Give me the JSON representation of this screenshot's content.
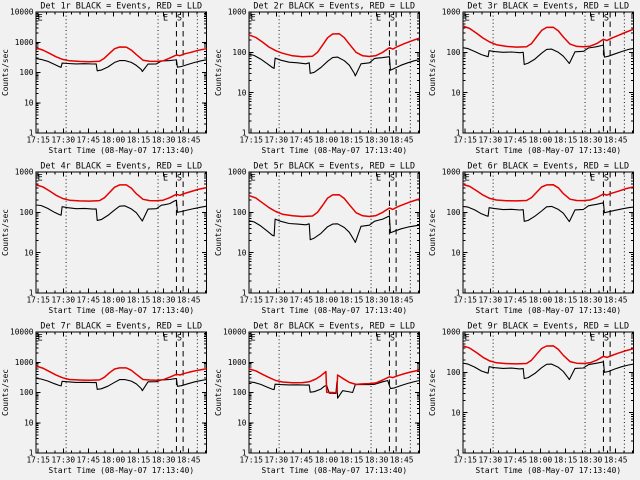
{
  "window": {
    "background": "#f1f1f1",
    "text_color": "#000000"
  },
  "chart_common": {
    "type": "line",
    "xlabel": "Start Time (08-May-07 17:13:40)",
    "ylabel": "Counts/sec",
    "legend_note": "BLACK = Events, RED = LLD",
    "x_axis_minutes_span": 102,
    "x_ticks": [
      {
        "label": "17:15",
        "t": 1.33
      },
      {
        "label": "17:30",
        "t": 16.33
      },
      {
        "label": "17:45",
        "t": 31.33
      },
      {
        "label": "18:00",
        "t": 46.33
      },
      {
        "label": "18:15",
        "t": 61.33
      },
      {
        "label": "18:30",
        "t": 76.33
      },
      {
        "label": "18:45",
        "t": 91.33
      }
    ],
    "x_minor_step_min": 5,
    "series_colors": {
      "Events": "#000000",
      "LLD": "#e60000"
    },
    "dotted_lines_t": [
      18,
      73,
      96.5
    ],
    "dashed_lines_t": [
      84,
      88
    ],
    "flags": [
      {
        "label": "E",
        "t": 2.5
      },
      {
        "label": "E",
        "t": 77.5
      },
      {
        "label": "S",
        "t": 85.8
      }
    ],
    "t_events": [
      0,
      3,
      7,
      11,
      14,
      15,
      15.6,
      19,
      24,
      29,
      34,
      36,
      36.6,
      39,
      43,
      47,
      50,
      53,
      57,
      60,
      63,
      63.6,
      67,
      72,
      75,
      77,
      80,
      83,
      84,
      84.6,
      87,
      91,
      95,
      99,
      102
    ],
    "t_lld": [
      0,
      4,
      8,
      12,
      16,
      20,
      26,
      32,
      38,
      41,
      44,
      47,
      50,
      54,
      57,
      60,
      64,
      68,
      72,
      76,
      80,
      84,
      86,
      89,
      93,
      97,
      102
    ]
  },
  "chart_data": [
    {
      "title": "Det 1r BLACK = Events, RED = LLD",
      "ylim": [
        1,
        10000
      ],
      "y_ticks": [
        "1",
        "10",
        "100",
        "1000",
        "10000"
      ],
      "series": [
        {
          "name": "Events",
          "v": [
            290,
            272,
            235,
            185,
            155,
            148,
            205,
            198,
            193,
            196,
            191,
            193,
            114,
            120,
            152,
            215,
            248,
            250,
            215,
            172,
            125,
            108,
            190,
            193,
            240,
            243,
            248,
            258,
            262,
            150,
            158,
            185,
            215,
            245,
            262
          ]
        },
        {
          "name": "LLD",
          "v": [
            650,
            555,
            430,
            330,
            272,
            243,
            232,
            228,
            236,
            300,
            430,
            610,
            695,
            690,
            550,
            390,
            255,
            236,
            233,
            242,
            300,
            380,
            360,
            415,
            470,
            540,
            610
          ]
        }
      ]
    },
    {
      "title": "Det 2r BLACK = Events, RED = LLD",
      "ylim": [
        1,
        1000
      ],
      "y_ticks": [
        "1",
        "10",
        "100",
        "1000"
      ],
      "series": [
        {
          "name": "Events",
          "v": [
            90,
            84,
            68,
            52,
            42,
            40,
            72,
            64,
            57,
            55,
            52,
            55,
            30,
            32,
            42,
            60,
            74,
            76,
            62,
            48,
            30,
            26,
            52,
            55,
            70,
            72,
            74,
            77,
            78,
            36,
            40,
            48,
            55,
            62,
            66
          ]
        },
        {
          "name": "LLD",
          "v": [
            270,
            235,
            180,
            135,
            110,
            95,
            82,
            78,
            80,
            100,
            150,
            230,
            285,
            288,
            230,
            160,
            100,
            82,
            79,
            83,
            100,
            130,
            120,
            140,
            165,
            190,
            225
          ]
        }
      ]
    },
    {
      "title": "Det 3r BLACK = Events, RED = LLD",
      "ylim": [
        1,
        1000
      ],
      "y_ticks": [
        "1",
        "10",
        "100",
        "1000"
      ],
      "series": [
        {
          "name": "Events",
          "v": [
            130,
            124,
            105,
            88,
            80,
            78,
            110,
            104,
            100,
            102,
            98,
            100,
            50,
            54,
            68,
            95,
            118,
            120,
            100,
            80,
            57,
            53,
            103,
            106,
            128,
            132,
            138,
            148,
            152,
            76,
            80,
            92,
            105,
            118,
            125
          ]
        },
        {
          "name": "LLD",
          "v": [
            450,
            390,
            300,
            225,
            180,
            155,
            140,
            135,
            138,
            165,
            240,
            350,
            415,
            418,
            340,
            240,
            160,
            140,
            137,
            142,
            165,
            210,
            195,
            225,
            265,
            310,
            375
          ]
        }
      ]
    },
    {
      "title": "Det 4r BLACK = Events, RED = LLD",
      "ylim": [
        1,
        1000
      ],
      "y_ticks": [
        "1",
        "10",
        "100",
        "1000"
      ],
      "series": [
        {
          "name": "Events",
          "v": [
            152,
            148,
            125,
            100,
            88,
            85,
            138,
            130,
            123,
            125,
            120,
            122,
            63,
            66,
            84,
            115,
            142,
            145,
            122,
            98,
            66,
            61,
            120,
            123,
            150,
            155,
            165,
            192,
            200,
            100,
            105,
            115,
            125,
            135,
            142
          ]
        },
        {
          "name": "LLD",
          "v": [
            480,
            430,
            340,
            265,
            220,
            200,
            192,
            190,
            195,
            230,
            310,
            420,
            478,
            480,
            400,
            290,
            210,
            195,
            193,
            200,
            230,
            280,
            265,
            295,
            330,
            370,
            410
          ]
        }
      ]
    },
    {
      "title": "Det 5r BLACK = Events, RED = LLD",
      "ylim": [
        1,
        1000
      ],
      "y_ticks": [
        "1",
        "10",
        "100",
        "1000"
      ],
      "series": [
        {
          "name": "Events",
          "v": [
            62,
            58,
            46,
            34,
            27,
            26,
            68,
            60,
            53,
            51,
            49,
            52,
            21,
            23,
            30,
            44,
            51,
            52,
            42,
            32,
            20,
            18,
            45,
            48,
            60,
            63,
            68,
            78,
            80,
            31,
            34,
            39,
            43,
            46,
            48
          ]
        },
        {
          "name": "LLD",
          "v": [
            260,
            228,
            172,
            130,
            105,
            90,
            82,
            79,
            81,
            100,
            148,
            225,
            270,
            272,
            220,
            155,
            98,
            82,
            79,
            83,
            100,
            128,
            118,
            138,
            160,
            185,
            215
          ]
        }
      ]
    },
    {
      "title": "Det 6r BLACK = Events, RED = LLD",
      "ylim": [
        1,
        1000
      ],
      "y_ticks": [
        "1",
        "10",
        "100",
        "1000"
      ],
      "series": [
        {
          "name": "Events",
          "v": [
            140,
            135,
            115,
            92,
            82,
            80,
            130,
            124,
            117,
            119,
            114,
            116,
            60,
            63,
            80,
            108,
            137,
            140,
            118,
            95,
            64,
            59,
            115,
            118,
            145,
            150,
            158,
            168,
            172,
            98,
            103,
            112,
            122,
            130,
            135
          ]
        },
        {
          "name": "LLD",
          "v": [
            490,
            440,
            345,
            268,
            222,
            202,
            194,
            192,
            197,
            232,
            312,
            425,
            480,
            482,
            405,
            292,
            212,
            197,
            195,
            202,
            232,
            285,
            268,
            298,
            335,
            380,
            430
          ]
        }
      ]
    },
    {
      "title": "Det 7r BLACK = Events, RED = LLD",
      "ylim": [
        1,
        10000
      ],
      "y_ticks": [
        "1",
        "10",
        "100",
        "1000",
        "10000"
      ],
      "series": [
        {
          "name": "Events",
          "v": [
            295,
            280,
            240,
            195,
            170,
            165,
            235,
            225,
            216,
            218,
            212,
            215,
            128,
            133,
            162,
            218,
            266,
            270,
            238,
            192,
            135,
            115,
            225,
            228,
            258,
            262,
            268,
            285,
            290,
            160,
            168,
            195,
            225,
            252,
            268
          ]
        },
        {
          "name": "LLD",
          "v": [
            750,
            640,
            490,
            375,
            305,
            270,
            258,
            254,
            260,
            320,
            450,
            600,
            650,
            648,
            540,
            400,
            270,
            258,
            256,
            262,
            320,
            400,
            380,
            430,
            490,
            545,
            610
          ]
        }
      ]
    },
    {
      "title": "Det 8r BLACK = Events, RED = LLD",
      "ylim": [
        1,
        10000
      ],
      "y_ticks": [
        "1",
        "10",
        "100",
        "1000",
        "10000"
      ],
      "series": [
        {
          "name": "Events",
          "t": [
            0,
            3,
            7,
            11,
            14,
            15,
            15.6,
            19,
            24,
            29,
            34,
            36,
            36.6,
            39,
            43,
            45,
            46.5,
            48,
            52,
            52.6,
            53,
            56,
            59,
            62,
            63.6,
            67,
            72,
            75,
            77,
            80,
            83,
            84.6,
            87,
            91,
            95,
            99,
            102
          ],
          "v": [
            225,
            215,
            185,
            150,
            128,
            125,
            188,
            182,
            178,
            180,
            176,
            178,
            102,
            106,
            130,
            160,
            170,
            95,
            93,
            225,
            65,
            115,
            108,
            100,
            182,
            185,
            183,
            186,
            200,
            225,
            250,
            135,
            142,
            170,
            200,
            230,
            250
          ]
        },
        {
          "name": "LLD",
          "t": [
            0,
            4,
            8,
            12,
            16,
            20,
            26,
            32,
            36,
            40,
            43,
            46,
            46.5,
            52,
            52.5,
            53,
            56,
            60,
            64,
            68,
            72,
            76,
            80,
            84,
            86,
            89,
            93,
            97,
            102
          ],
          "v": [
            600,
            520,
            400,
            310,
            250,
            222,
            210,
            212,
            225,
            280,
            360,
            490,
            102,
            98,
            100,
            380,
            295,
            215,
            185,
            192,
            197,
            207,
            258,
            330,
            310,
            360,
            420,
            480,
            550
          ]
        }
      ]
    },
    {
      "title": "Det 9r BLACK = Events, RED = LLD",
      "ylim": [
        1,
        1000
      ],
      "y_ticks": [
        "1",
        "10",
        "100",
        "1000"
      ],
      "series": [
        {
          "name": "Events",
          "v": [
            168,
            160,
            135,
            108,
            98,
            95,
            138,
            130,
            125,
            127,
            122,
            124,
            70,
            74,
            94,
            130,
            158,
            160,
            133,
            105,
            72,
            66,
            125,
            128,
            155,
            160,
            168,
            178,
            182,
            100,
            105,
            122,
            138,
            152,
            160
          ]
        },
        {
          "name": "LLD",
          "v": [
            455,
            400,
            310,
            235,
            192,
            172,
            165,
            162,
            166,
            200,
            280,
            390,
            450,
            452,
            370,
            265,
            185,
            168,
            166,
            172,
            200,
            250,
            235,
            262,
            300,
            340,
            385
          ]
        }
      ]
    }
  ]
}
